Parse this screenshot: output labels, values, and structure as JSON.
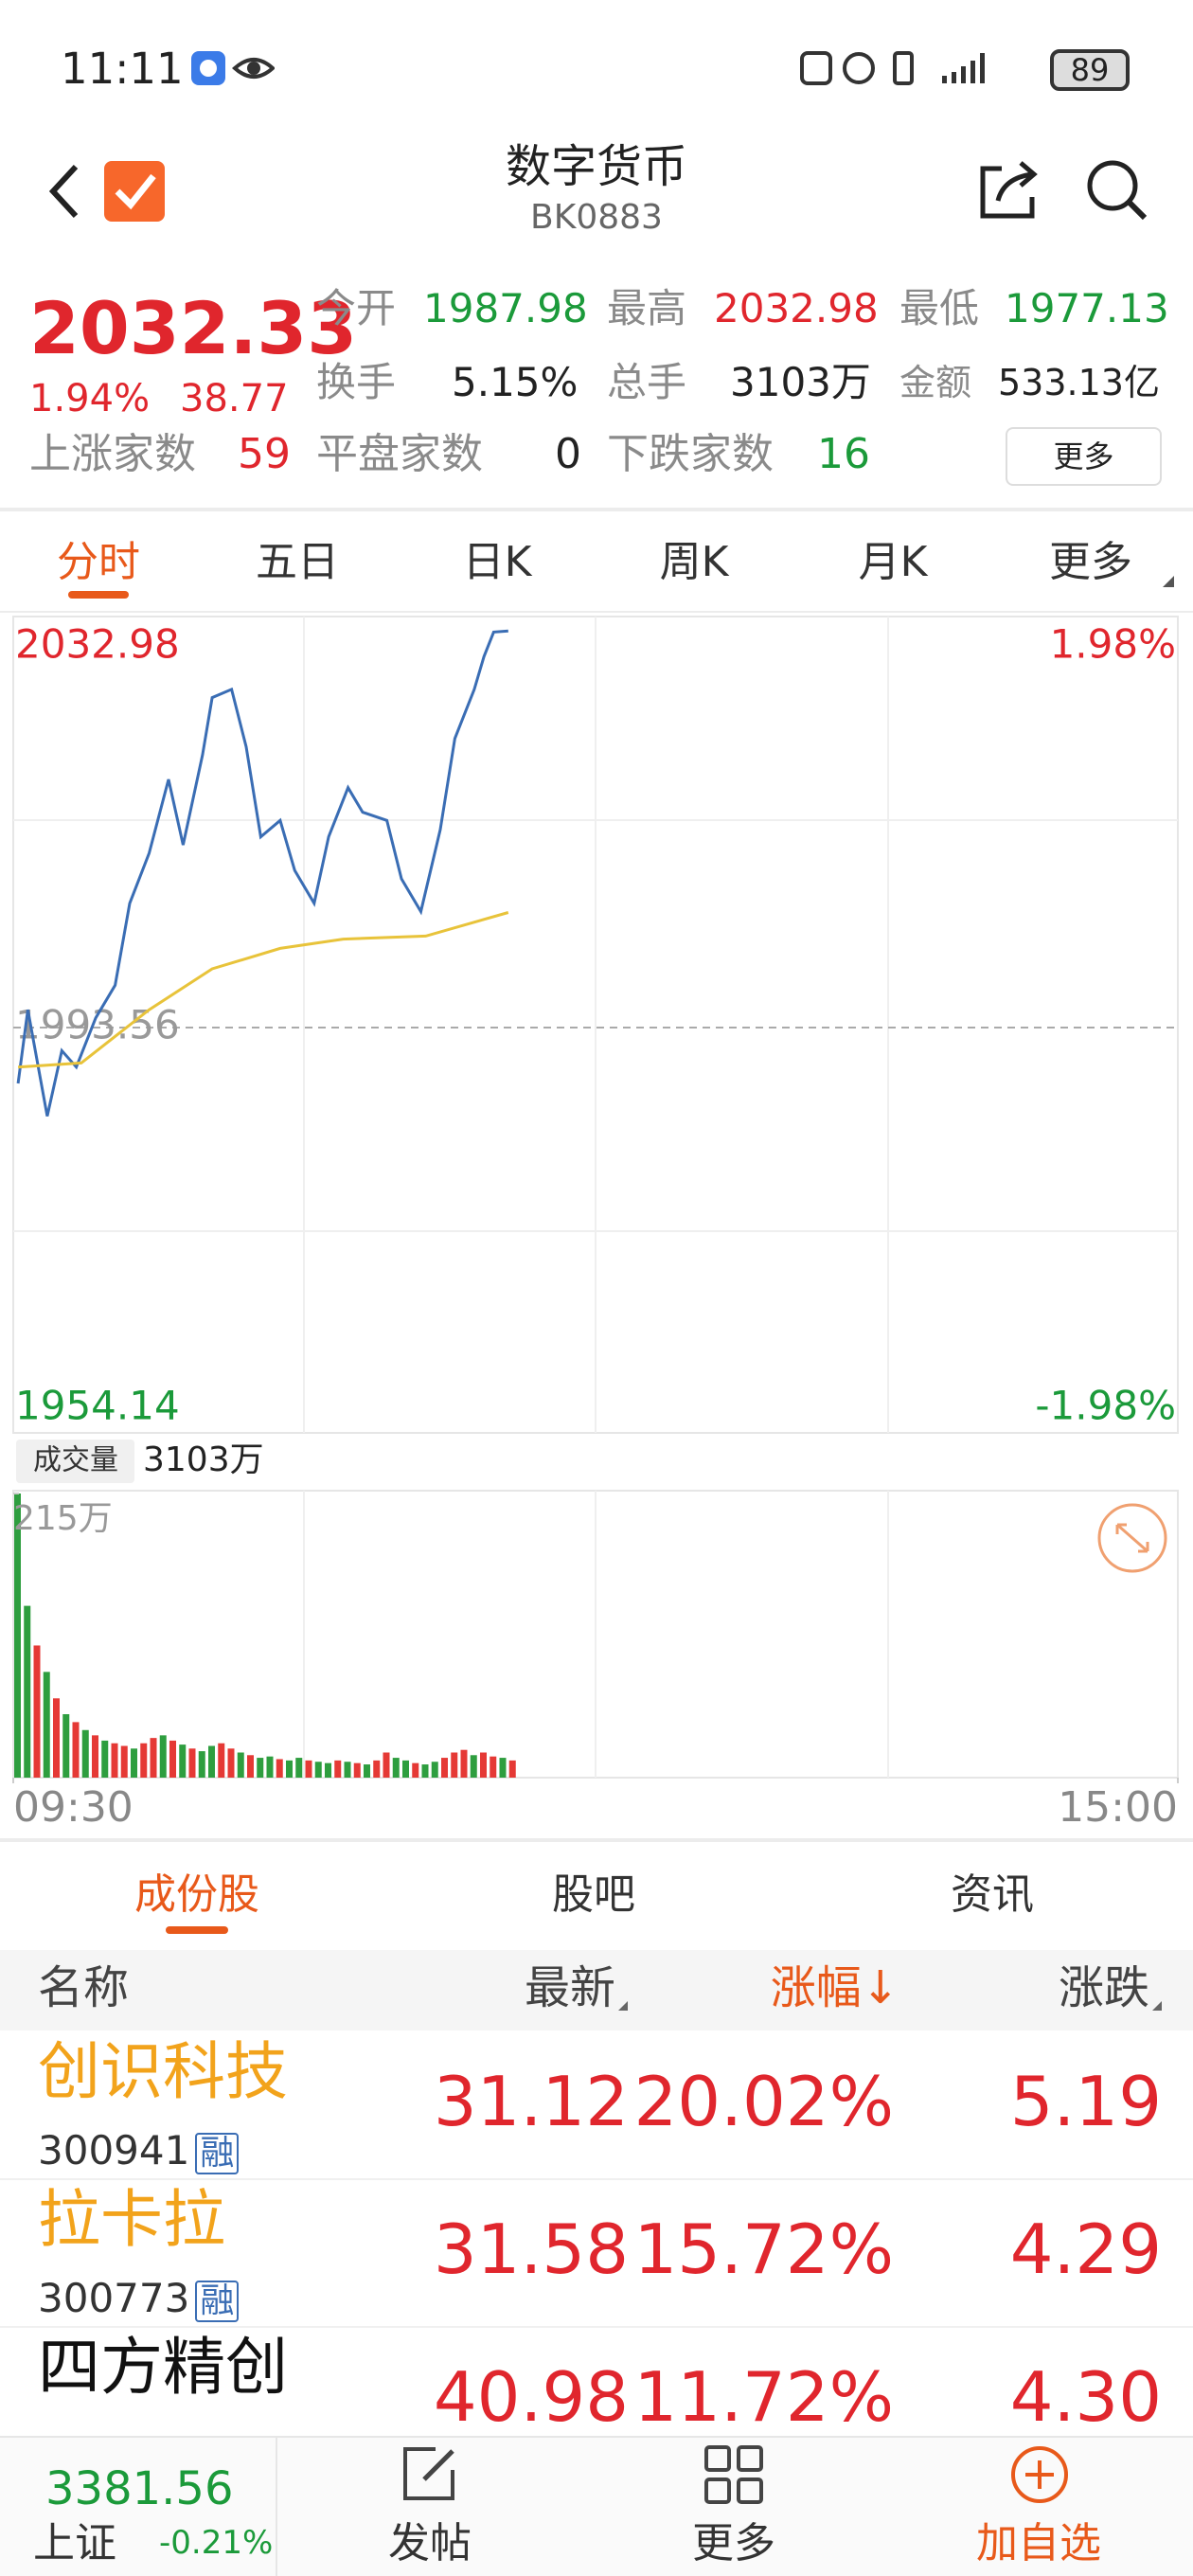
{
  "status_bar": {
    "time": "11:11",
    "battery": "89"
  },
  "header": {
    "title": "数字货币",
    "code": "BK0883"
  },
  "quote": {
    "price": "2032.33",
    "change_pct": "1.94%",
    "change": "38.77",
    "open_label": "今开",
    "open": "1987.98",
    "high_label": "最高",
    "high": "2032.98",
    "low_label": "最低",
    "low": "1977.13",
    "turnover_label": "换手",
    "turnover": "5.15%",
    "volume_label": "总手",
    "volume": "3103万",
    "amount_label": "金额",
    "amount": "533.13亿",
    "up_label": "上涨家数",
    "up": "59",
    "flat_label": "平盘家数",
    "flat": "0",
    "down_label": "下跌家数",
    "down": "16",
    "more": "更多"
  },
  "tabs": [
    "分时",
    "五日",
    "日K",
    "周K",
    "月K",
    "更多"
  ],
  "chart_data": [
    {
      "type": "line",
      "xlim": [
        0,
        240
      ],
      "ylim": [
        1954.14,
        2032.98
      ],
      "yticks": [
        1954.14,
        1993.56,
        2032.98
      ],
      "y2lim": [
        -1.98,
        1.98
      ],
      "y2ticks": [
        {
          "value": -1.98,
          "label": "-1.98%"
        },
        {
          "value": 1.98,
          "label": "1.98%"
        }
      ],
      "series": [
        {
          "color": "#3a6db4",
          "x": [
            1,
            3,
            7,
            10,
            13,
            17,
            21,
            24,
            28,
            32,
            35,
            39,
            41,
            45,
            48,
            51,
            55,
            58,
            62,
            65,
            69,
            72,
            77,
            80,
            84,
            88,
            91,
            95,
            97,
            99,
            102
          ],
          "values": [
            1988.1,
            1995.3,
            1984.9,
            1991.3,
            1989.7,
            1994.5,
            1997.7,
            2005.7,
            2010.6,
            2017.8,
            2011.4,
            2020.2,
            2025.8,
            2026.6,
            2021.0,
            2012.2,
            2013.8,
            2008.9,
            2005.7,
            2012.2,
            2017.0,
            2014.6,
            2013.8,
            2008.1,
            2004.9,
            2012.9,
            2021.8,
            2026.6,
            2029.8,
            2032.2,
            2032.3
          ]
        },
        {
          "color": "#e8c33a",
          "x": [
            1,
            14,
            28,
            41,
            55,
            68,
            85,
            102
          ],
          "values": [
            1989.7,
            1990.1,
            1995.3,
            1999.3,
            2001.3,
            2002.2,
            2002.5,
            2004.8
          ]
        }
      ]
    },
    {
      "type": "bar",
      "volume_label": "成交量",
      "volume_total": "3103万",
      "xlim": [
        0,
        240
      ],
      "xticks": [
        {
          "value": 0,
          "label": "09:30"
        },
        {
          "value": 240,
          "label": "15:00"
        }
      ],
      "ylim": [
        0,
        215
      ],
      "yticks": [
        {
          "value": 215,
          "label": "215万"
        }
      ],
      "x": [
        0,
        2,
        4,
        6,
        8,
        10,
        12,
        14,
        16,
        18,
        20,
        22,
        24,
        26,
        28,
        30,
        32,
        34,
        36,
        38,
        40,
        42,
        44,
        46,
        48,
        50,
        52,
        54,
        56,
        58,
        60,
        62,
        64,
        66,
        68,
        70,
        72,
        74,
        76,
        78,
        80,
        82,
        84,
        86,
        88,
        90,
        92,
        94,
        96,
        98,
        100,
        102
      ],
      "values": [
        215,
        130,
        100,
        80,
        60,
        48,
        42,
        36,
        32,
        28,
        26,
        24,
        22,
        26,
        30,
        32,
        28,
        25,
        22,
        20,
        24,
        26,
        22,
        19,
        17,
        15,
        16,
        14,
        13,
        15,
        13,
        12,
        11,
        13,
        12,
        11,
        10,
        13,
        19,
        15,
        13,
        11,
        10,
        12,
        15,
        19,
        21,
        17,
        19,
        16,
        15,
        13
      ],
      "colors": [
        "#2e9e3f",
        "#2e9e3f",
        "#e53935",
        "#2e9e3f",
        "#e53935",
        "#2e9e3f",
        "#e53935",
        "#2e9e3f",
        "#e53935",
        "#2e9e3f",
        "#e53935",
        "#e53935",
        "#2e9e3f",
        "#e53935",
        "#e53935",
        "#2e9e3f",
        "#e53935",
        "#2e9e3f",
        "#e53935",
        "#2e9e3f",
        "#2e9e3f",
        "#e53935",
        "#e53935",
        "#2e9e3f",
        "#e53935",
        "#2e9e3f",
        "#2e9e3f",
        "#e53935",
        "#2e9e3f",
        "#2e9e3f",
        "#e53935",
        "#2e9e3f",
        "#2e9e3f",
        "#e53935",
        "#2e9e3f",
        "#e53935",
        "#2e9e3f",
        "#e53935",
        "#e53935",
        "#2e9e3f",
        "#2e9e3f",
        "#e53935",
        "#2e9e3f",
        "#2e9e3f",
        "#e53935",
        "#e53935",
        "#e53935",
        "#2e9e3f",
        "#e53935",
        "#e53935",
        "#2e9e3f",
        "#e53935"
      ]
    }
  ],
  "stocks": {
    "tabs": [
      "成份股",
      "股吧",
      "资讯"
    ],
    "columns": [
      "名称",
      "最新",
      "涨幅↓",
      "涨跌"
    ],
    "rows": [
      {
        "name": "创识科技",
        "code": "300941",
        "tag": "融",
        "price": "31.12",
        "pct": "20.02%",
        "change": "5.19"
      },
      {
        "name": "拉卡拉",
        "code": "300773",
        "tag": "融",
        "price": "31.58",
        "pct": "15.72%",
        "change": "4.29"
      },
      {
        "name": "四方精创",
        "price": "40.98",
        "pct": "11.72%",
        "change": "4.30"
      }
    ]
  },
  "footer": {
    "index_value": "3381.56",
    "index_name": "上证",
    "index_pct": "-0.21%",
    "actions": [
      "发帖",
      "更多",
      "加自选"
    ]
  }
}
